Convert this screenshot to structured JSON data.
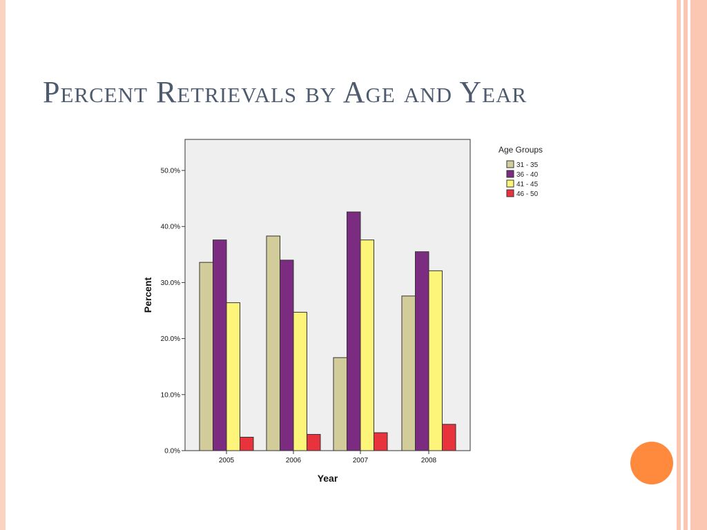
{
  "slide": {
    "title": "Percent Retrievals by Age and Year"
  },
  "colors": {
    "border": "#fbc7b2",
    "accent_circle": "#ff8a3d",
    "title": "#4e5b6f",
    "plot_background": "#efefef"
  },
  "chart_data": {
    "type": "bar",
    "xlabel": "Year",
    "ylabel": "Percent",
    "categories": [
      "2005",
      "2006",
      "2007",
      "2008"
    ],
    "yticks": [
      "0.0%",
      "10.0%",
      "20.0%",
      "30.0%",
      "40.0%",
      "50.0%"
    ],
    "ylim": [
      0,
      50
    ],
    "legend_title": "Age Groups",
    "legend_position": "top-right",
    "grid": false,
    "series": [
      {
        "name": "31 - 35",
        "color": "#d1cc9a",
        "values": [
          33.6,
          38.3,
          16.6,
          27.6
        ]
      },
      {
        "name": "36 - 40",
        "color": "#7b2c80",
        "values": [
          37.6,
          34.0,
          42.6,
          35.5
        ]
      },
      {
        "name": "41 - 45",
        "color": "#fcf57a",
        "values": [
          26.4,
          24.7,
          37.6,
          32.1
        ]
      },
      {
        "name": "46 - 50",
        "color": "#e8323c",
        "values": [
          2.4,
          2.9,
          3.2,
          4.7
        ]
      }
    ]
  }
}
